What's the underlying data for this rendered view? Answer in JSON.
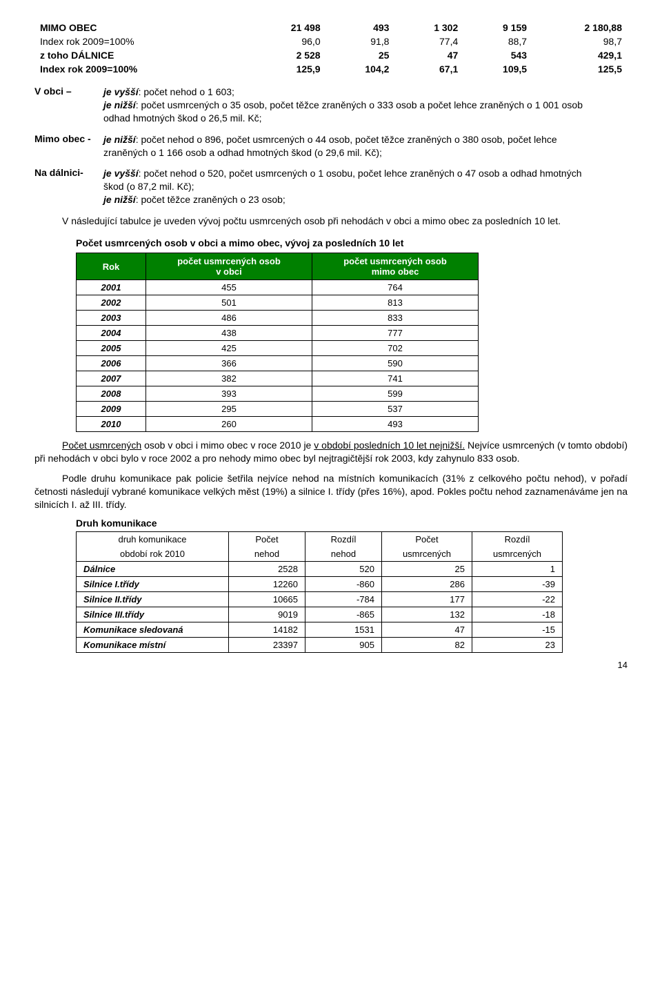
{
  "table1": {
    "rows": [
      {
        "label": "MIMO OBEC",
        "bold": true,
        "c1": "21 498",
        "c2": "493",
        "c3": "1 302",
        "c4": "9 159",
        "c5": "2 180,88"
      },
      {
        "label": "Index rok 2009=100%",
        "bold": false,
        "c1": "96,0",
        "c2": "91,8",
        "c3": "77,4",
        "c4": "88,7",
        "c5": "98,7"
      },
      {
        "label": "z toho DÁLNICE",
        "bold": true,
        "c1": "2 528",
        "c2": "25",
        "c3": "47",
        "c4": "543",
        "c5": "429,1"
      },
      {
        "label": "Index rok 2009=100%",
        "bold": true,
        "c1": "125,9",
        "c2": "104,2",
        "c3": "67,1",
        "c4": "109,5",
        "c5": "125,5"
      }
    ]
  },
  "defs": [
    {
      "label": "V obci –",
      "lines": [
        {
          "lead": "je vyšší",
          "rest": ": počet nehod o 1 603;"
        },
        {
          "lead": "je nižší",
          "rest": ": počet usmrcených o 35 osob, počet těžce zraněných o 333 osob a počet lehce zraněných o 1 001 osob odhad hmotných škod o 26,5 mil. Kč;"
        }
      ]
    },
    {
      "label": "Mimo obec -",
      "lines": [
        {
          "lead": "je nižší",
          "rest": ": počet nehod o 896, počet usmrcených o 44 osob, počet těžce zraněných o 380 osob, počet lehce zraněných o 1 166 osob a odhad hmotných škod (o 29,6 mil. Kč);"
        }
      ]
    },
    {
      "label": "Na dálnici-",
      "lines": [
        {
          "lead": "je vyšší",
          "rest": ": počet nehod o 520, počet usmrcených o 1 osobu, počet lehce zraněných o 47 osob a odhad hmotných škod (o 87,2 mil. Kč);"
        },
        {
          "lead": "je nižší",
          "rest": ": počet těžce zraněných o 23 osob;"
        }
      ]
    }
  ],
  "para1": "V následující tabulce je uveden vývoj počtu usmrcených osob při nehodách v obci a mimo obec za posledních 10 let.",
  "t2": {
    "title": "Počet usmrcených osob v obci a mimo obec, vývoj za posledních 10 let",
    "headers": [
      "Rok",
      "počet usmrcených osob v obci",
      "počet usmrcených osob mimo obec"
    ],
    "rows": [
      [
        "2001",
        "455",
        "764"
      ],
      [
        "2002",
        "501",
        "813"
      ],
      [
        "2003",
        "486",
        "833"
      ],
      [
        "2004",
        "438",
        "777"
      ],
      [
        "2005",
        "425",
        "702"
      ],
      [
        "2006",
        "366",
        "590"
      ],
      [
        "2007",
        "382",
        "741"
      ],
      [
        "2008",
        "393",
        "599"
      ],
      [
        "2009",
        "295",
        "537"
      ],
      [
        "2010",
        "260",
        "493"
      ]
    ]
  },
  "para2_parts": {
    "p1_a": "Počet usmrcených",
    "p1_b": " osob v obci i mimo obec v roce 2010 je ",
    "p1_c": "v období posledních 10 let nejnižší.",
    "p1_d": " Nejvíce usmrcených (v tomto období) při nehodách v obci bylo v roce 2002 a pro nehody mimo obec byl nejtragičtější rok 2003, kdy zahynulo 833 osob."
  },
  "para3": "Podle druhu komunikace pak policie šetřila nejvíce nehod na místních komunikacích (31% z celkového počtu nehod), v pořadí četnosti následují vybrané komunikace velkých měst (19%) a silnice I. třídy (přes 16%), apod. Pokles počtu nehod zaznamenáváme jen na silnicích I. až III. třídy.",
  "t3": {
    "title": "Druh komunikace",
    "head_line1": [
      "druh komunikace",
      "Počet",
      "Rozdíl",
      "Počet",
      "Rozdíl"
    ],
    "head_line2": [
      "období  rok 2010",
      "nehod",
      "nehod",
      "usmrcených",
      "usmrcených"
    ],
    "rows": [
      [
        "Dálnice",
        "2528",
        "520",
        "25",
        "1"
      ],
      [
        "Silnice I.třídy",
        "12260",
        "-860",
        "286",
        "-39"
      ],
      [
        "Silnice II.třídy",
        "10665",
        "-784",
        "177",
        "-22"
      ],
      [
        "Silnice III.třídy",
        "9019",
        "-865",
        "132",
        "-18"
      ],
      [
        "Komunikace sledovaná",
        "14182",
        "1531",
        "47",
        "-15"
      ],
      [
        "Komunikace místní",
        "23397",
        "905",
        "82",
        "23"
      ]
    ]
  },
  "pagenum": "14"
}
